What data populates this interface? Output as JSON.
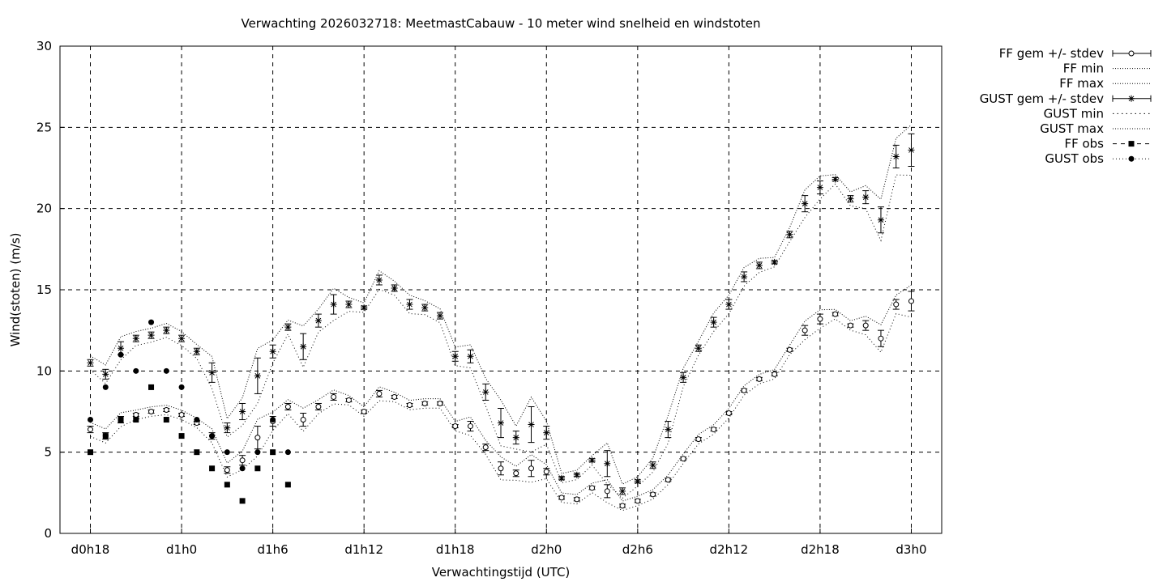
{
  "chart_data": {
    "type": "line",
    "title": "Verwachting 2026032718: MeetmastCabauw - 10 meter wind snelheid en windstoten",
    "xlabel": "Verwachtingstijd (UTC)",
    "ylabel": "Wind(stoten) (m/s)",
    "xlim": [
      16,
      74
    ],
    "ylim": [
      0,
      30
    ],
    "grid": true,
    "legend_position": "outside-top-right",
    "x_unit": "hours since d0h0",
    "xticks": [
      {
        "value": 18,
        "label": "d0h18"
      },
      {
        "value": 24,
        "label": "d1h0"
      },
      {
        "value": 30,
        "label": "d1h6"
      },
      {
        "value": 36,
        "label": "d1h12"
      },
      {
        "value": 42,
        "label": "d1h18"
      },
      {
        "value": 48,
        "label": "d2h0"
      },
      {
        "value": 54,
        "label": "d2h6"
      },
      {
        "value": 60,
        "label": "d2h12"
      },
      {
        "value": 66,
        "label": "d2h18"
      },
      {
        "value": 72,
        "label": "d3h0"
      }
    ],
    "yticks": [
      "0",
      "5",
      "10",
      "15",
      "20",
      "25",
      "30"
    ],
    "legend": [
      "FF gem +/- stdev",
      "FF min",
      "FF max",
      "GUST gem +/- stdev",
      "GUST min",
      "GUST max",
      "FF obs",
      "GUST obs"
    ],
    "forecast_x_start": 18,
    "ff_mean": [
      6.4,
      6.0,
      7.0,
      7.3,
      7.5,
      7.6,
      7.3,
      6.8,
      6.0,
      3.9,
      4.5,
      5.9,
      6.9,
      7.8,
      7.0,
      7.8,
      8.4,
      8.2,
      7.5,
      8.6,
      8.4,
      7.9,
      8.0,
      8.0,
      6.6,
      6.6,
      5.3,
      4.0,
      3.7,
      4.0,
      3.8,
      2.2,
      2.1,
      2.8,
      2.6,
      1.7,
      2.0,
      2.4,
      3.3,
      4.6,
      5.8,
      6.4,
      7.4,
      8.8,
      9.5,
      9.8,
      11.3,
      12.5,
      13.2,
      13.5,
      12.8,
      12.8,
      12.0,
      14.1,
      14.3
    ],
    "ff_stdev": [
      0.2,
      0.2,
      0.2,
      0.1,
      0.1,
      0.1,
      0.1,
      0.1,
      0.2,
      0.2,
      0.3,
      0.7,
      0.3,
      0.2,
      0.4,
      0.2,
      0.2,
      0.1,
      0.1,
      0.2,
      0.1,
      0.1,
      0.1,
      0.1,
      0.1,
      0.3,
      0.2,
      0.4,
      0.2,
      0.5,
      0.2,
      0.1,
      0.1,
      0.1,
      0.4,
      0.1,
      0.1,
      0.1,
      0.1,
      0.1,
      0.1,
      0.1,
      0.1,
      0.1,
      0.1,
      0.1,
      0.1,
      0.3,
      0.3,
      0.1,
      0.1,
      0.3,
      0.5,
      0.3,
      0.6
    ],
    "gust_mean": [
      10.5,
      9.8,
      11.4,
      12.0,
      12.2,
      12.5,
      12.0,
      11.2,
      9.9,
      6.5,
      7.5,
      9.7,
      11.2,
      12.7,
      11.5,
      13.1,
      14.1,
      14.1,
      13.9,
      15.6,
      15.1,
      14.1,
      13.9,
      13.4,
      10.9,
      10.9,
      8.7,
      6.8,
      5.9,
      6.7,
      6.2,
      3.4,
      3.6,
      4.5,
      4.3,
      2.6,
      3.2,
      4.2,
      6.4,
      9.6,
      11.4,
      13.0,
      14.1,
      15.8,
      16.5,
      16.7,
      18.4,
      20.3,
      21.3,
      21.8,
      20.6,
      20.7,
      19.3,
      23.2,
      23.6
    ],
    "gust_stdev": [
      0.2,
      0.3,
      0.4,
      0.2,
      0.2,
      0.2,
      0.2,
      0.2,
      0.6,
      0.3,
      0.5,
      1.1,
      0.4,
      0.2,
      0.8,
      0.4,
      0.6,
      0.2,
      0.1,
      0.3,
      0.2,
      0.3,
      0.2,
      0.2,
      0.3,
      0.4,
      0.5,
      0.9,
      0.4,
      1.1,
      0.4,
      0.1,
      0.1,
      0.1,
      0.8,
      0.2,
      0.1,
      0.2,
      0.5,
      0.3,
      0.2,
      0.3,
      0.3,
      0.3,
      0.2,
      0.1,
      0.2,
      0.5,
      0.4,
      0.1,
      0.2,
      0.4,
      0.8,
      0.7,
      1.0
    ],
    "ff_obs_x_start": 18,
    "ff_obs": [
      5,
      6,
      7,
      7,
      9,
      7,
      6,
      5,
      4,
      3,
      2,
      4,
      5,
      3
    ],
    "gust_obs": [
      7,
      9,
      11,
      10,
      13,
      10,
      9,
      7,
      6,
      5,
      4,
      5,
      7,
      5
    ]
  }
}
